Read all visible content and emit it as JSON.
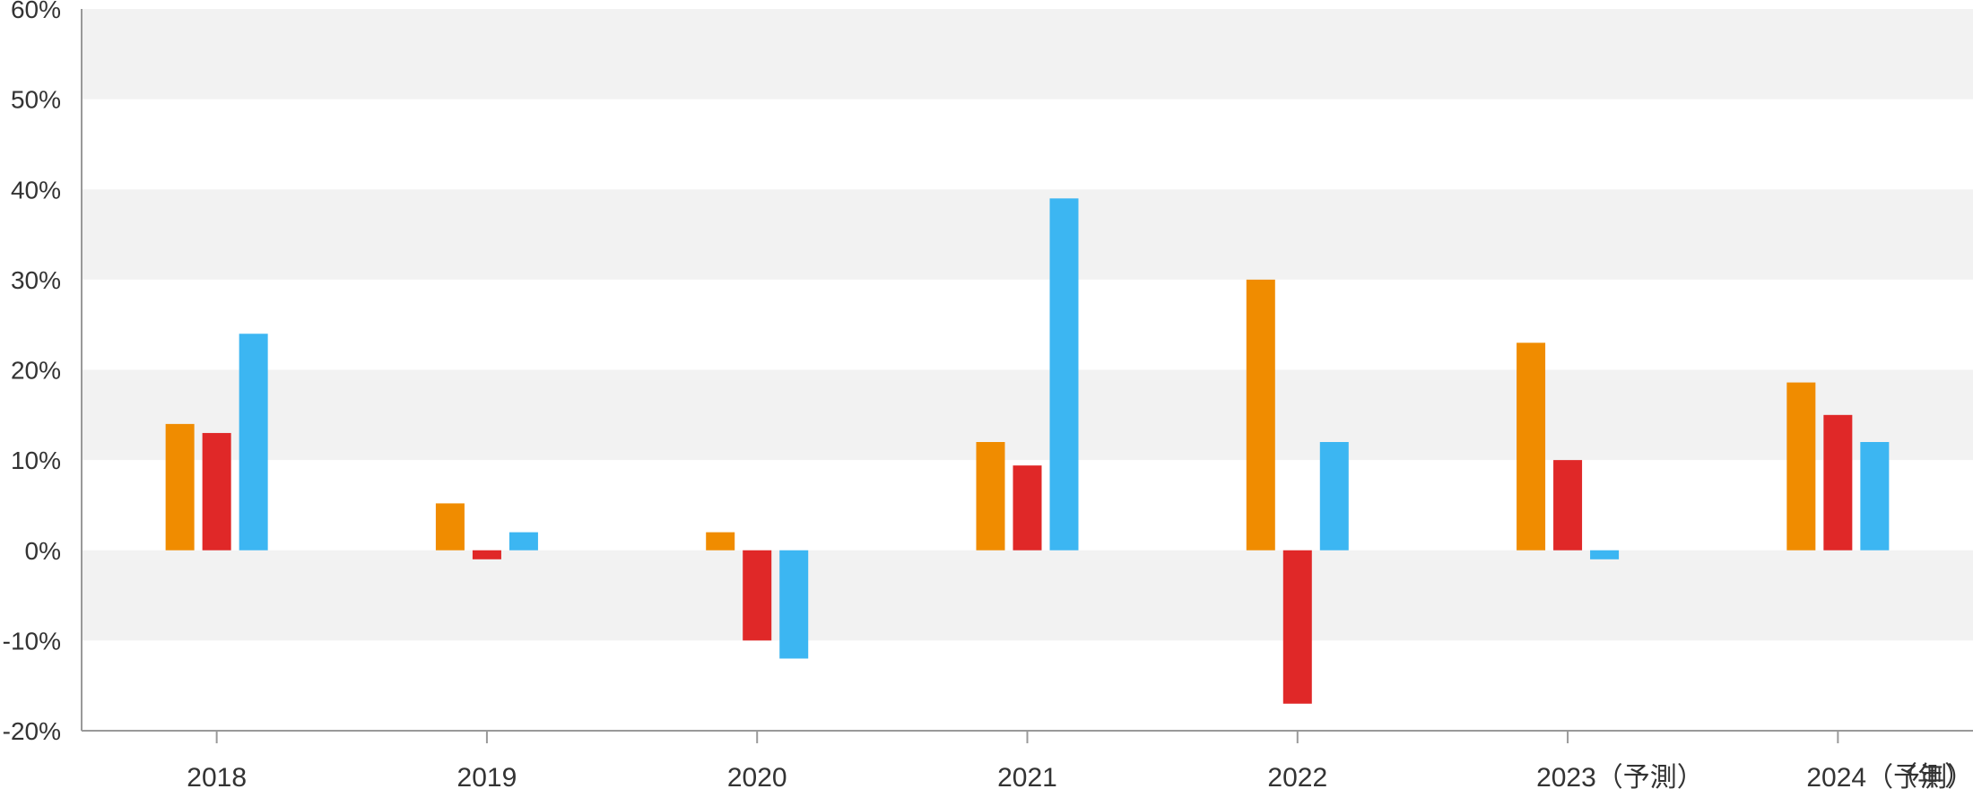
{
  "chart_data": {
    "type": "bar",
    "categories": [
      "2018",
      "2019",
      "2020",
      "2021",
      "2022",
      "2023（予測）",
      "2024（予測）"
    ],
    "series": [
      {
        "values": [
          14,
          5.2,
          2,
          12,
          30,
          23,
          18.6
        ]
      },
      {
        "values": [
          13,
          -1,
          -10,
          9.4,
          -17,
          10,
          15
        ]
      },
      {
        "values": [
          24,
          2,
          -12,
          39,
          12,
          -1,
          12
        ]
      }
    ],
    "colors": [
      "#f08c00",
      "#e02828",
      "#3cb6f2"
    ],
    "ylim": [
      -20,
      60
    ],
    "yticks": [
      -20,
      -10,
      0,
      10,
      20,
      30,
      40,
      50,
      60
    ],
    "ytick_labels": [
      "-20%",
      "-10%",
      "0%",
      "10%",
      "20%",
      "30%",
      "40%",
      "50%",
      "60%"
    ],
    "x_unit_label": "（年）",
    "grid": "alternating horizontal bands",
    "legend": "none"
  }
}
